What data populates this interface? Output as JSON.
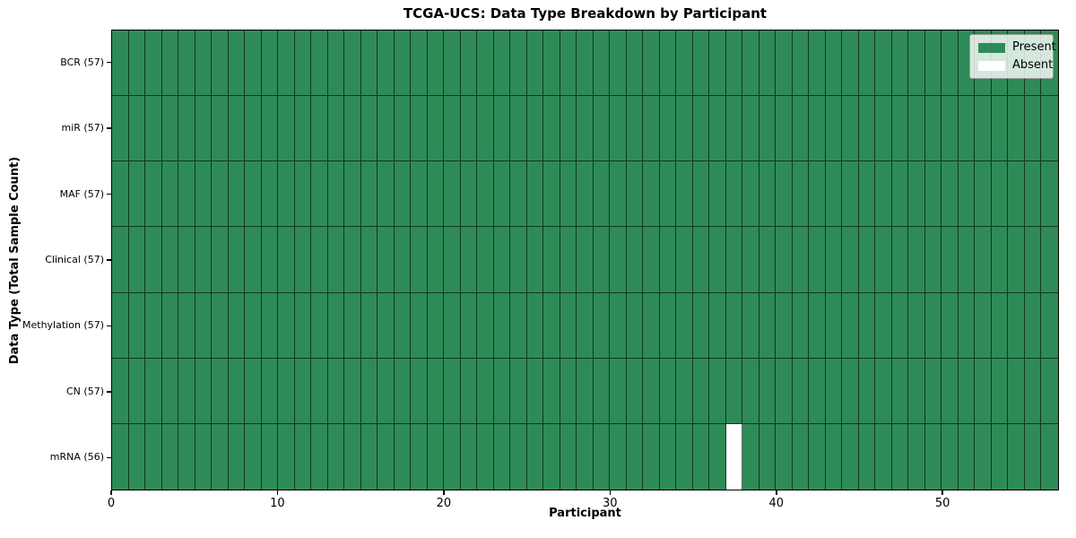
{
  "chart_data": {
    "type": "heatmap",
    "title": "TCGA-UCS: Data Type Breakdown by Participant",
    "xlabel": "Participant",
    "ylabel": "Data Type (Total Sample Count)",
    "n_participants": 57,
    "xlim": [
      0,
      57
    ],
    "x_ticks": [
      0,
      10,
      20,
      30,
      40,
      50
    ],
    "grid": true,
    "legend_position": "upper right",
    "rows": [
      {
        "data_type": "BCR",
        "total": 57,
        "tick_label": "BCR (57)",
        "absent_participants": []
      },
      {
        "data_type": "miR",
        "total": 57,
        "tick_label": "miR (57)",
        "absent_participants": []
      },
      {
        "data_type": "MAF",
        "total": 57,
        "tick_label": "MAF (57)",
        "absent_participants": []
      },
      {
        "data_type": "Clinical",
        "total": 57,
        "tick_label": "Clinical (57)",
        "absent_participants": []
      },
      {
        "data_type": "Methylation",
        "total": 57,
        "tick_label": "Methylation (57)",
        "absent_participants": []
      },
      {
        "data_type": "CN",
        "total": 57,
        "tick_label": "CN (57)",
        "absent_participants": []
      },
      {
        "data_type": "mRNA",
        "total": 56,
        "tick_label": "mRNA (56)",
        "absent_participants": [
          37
        ]
      }
    ],
    "legend": [
      {
        "label": "Present",
        "color": "#2e8b57"
      },
      {
        "label": "Absent",
        "color": "#ffffff"
      }
    ],
    "colors": {
      "present": "#2e8b57",
      "absent": "#ffffff",
      "figure_background": "#ffffff",
      "cell_edge": "rgba(0,0,0,0.60)"
    }
  }
}
